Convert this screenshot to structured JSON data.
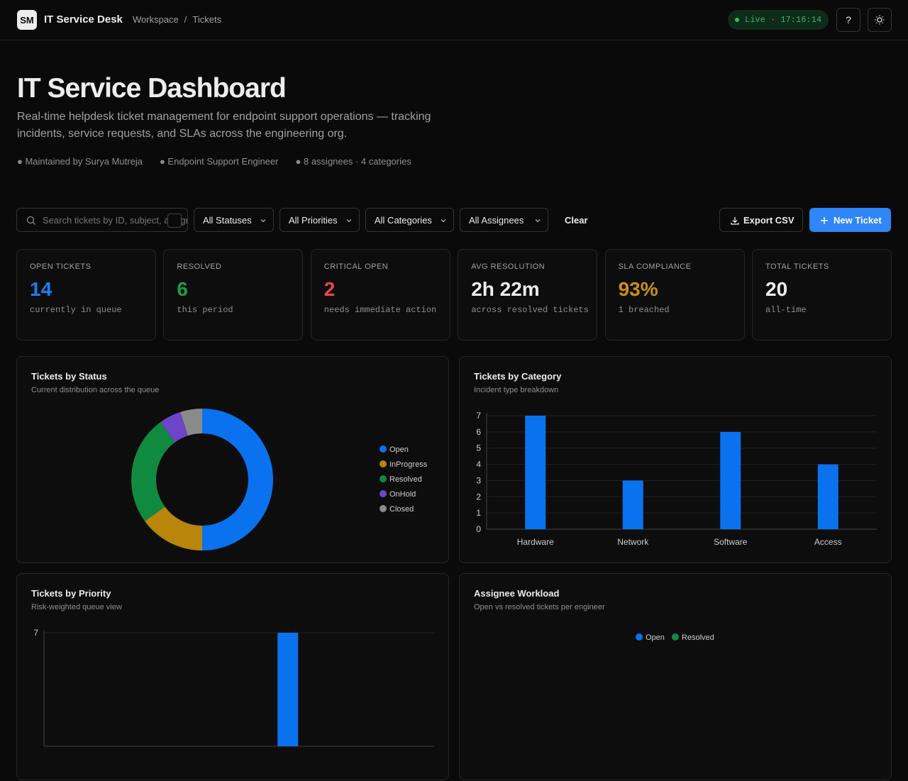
{
  "header": {
    "logo": "SM",
    "app_name": "IT Service Desk",
    "breadcrumb": [
      "Workspace",
      "Tickets"
    ],
    "breadcrumb_separator": "/",
    "live_status": "Live · 17:16:14",
    "help_button": "?"
  },
  "hero": {
    "title": "IT Service Dashboard",
    "description": "Real-time helpdesk ticket management for endpoint support operations — tracking incidents, service requests, and SLAs across the engineering org.",
    "meta": [
      "● Maintained by Surya Mutreja",
      "● Endpoint Support Engineer",
      "● 8 assignees · 4 categories"
    ]
  },
  "filters": {
    "search_placeholder": "Search tickets by ID, subject, assignee",
    "selects": [
      "All Statuses",
      "All Priorities",
      "All Categories",
      "All Assignees"
    ],
    "clear": "Clear",
    "export": "Export CSV",
    "new_ticket": "New Ticket"
  },
  "stats": [
    {
      "label": "OPEN TICKETS",
      "value": "14",
      "note": "currently in queue",
      "color": "#1f7cf2"
    },
    {
      "label": "RESOLVED",
      "value": "6",
      "note": "this period",
      "color": "#1f9d4a"
    },
    {
      "label": "CRITICAL OPEN",
      "value": "2",
      "note": "needs immediate action",
      "color": "#e5484d"
    },
    {
      "label": "AVG RESOLUTION",
      "value": "2h 22m",
      "note": "across resolved tickets",
      "color": "#ededed"
    },
    {
      "label": "SLA COMPLIANCE",
      "value": "93%",
      "note": "1 breached",
      "color": "#c9901a"
    },
    {
      "label": "TOTAL TICKETS",
      "value": "20",
      "note": "all-time",
      "color": "#ededed"
    }
  ],
  "chart_data": [
    {
      "type": "donut",
      "title": "Tickets by Status",
      "subtitle": "Current distribution across the queue",
      "categories": [
        "Open",
        "InProgress",
        "Resolved",
        "OnHold",
        "Closed"
      ],
      "values": [
        10,
        3,
        5,
        1,
        1
      ],
      "colors": [
        "#0a72ef",
        "#b8860b",
        "#108a3e",
        "#6e45c8",
        "#8a8a8a"
      ]
    },
    {
      "type": "bar",
      "title": "Tickets by Category",
      "subtitle": "Incident type breakdown",
      "categories": [
        "Hardware",
        "Network",
        "Software",
        "Access"
      ],
      "values": [
        7,
        3,
        6,
        4
      ],
      "color": "#0a72ef",
      "ylim": [
        0,
        7
      ],
      "yticks": [
        0,
        1,
        2,
        3,
        4,
        5,
        6,
        7
      ],
      "grid": true
    },
    {
      "type": "bar",
      "title": "Tickets by Priority",
      "subtitle": "Risk-weighted queue view",
      "categories": [
        null,
        null,
        null,
        null
      ],
      "values": [
        null,
        null,
        7,
        null
      ],
      "color": "#0a72ef",
      "ylim": [
        0,
        7
      ],
      "yticks": [
        7
      ],
      "grid": true
    },
    {
      "type": "bar",
      "title": "Assignee Workload",
      "subtitle": "Open vs resolved tickets per engineer",
      "categories": [],
      "series": [
        {
          "name": "Open",
          "color": "#0a72ef",
          "values": []
        },
        {
          "name": "Resolved",
          "color": "#108a3e",
          "values": []
        }
      ]
    }
  ]
}
